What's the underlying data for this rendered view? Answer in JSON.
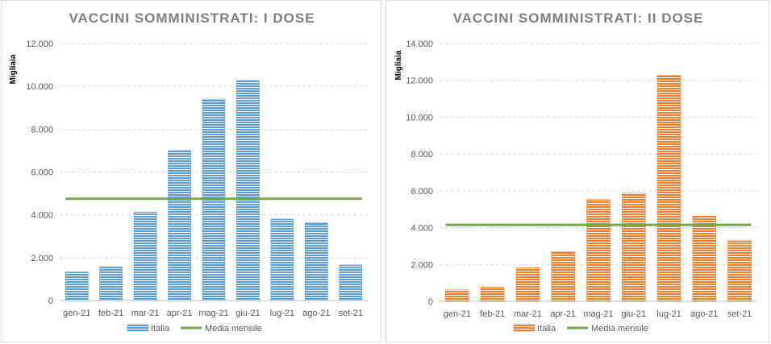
{
  "chart_data": [
    {
      "type": "bar",
      "title": "VACCINI SOMMINISTRATI: I DOSE",
      "ylabel": "Migliaia",
      "xlabel": "",
      "categories": [
        "gen-21",
        "feb-21",
        "mar-21",
        "apr-21",
        "mag-21",
        "giu-21",
        "lug-21",
        "ago-21",
        "set-21"
      ],
      "series": [
        {
          "name": "Italia",
          "type": "bar",
          "values": [
            1330,
            1570,
            4130,
            7000,
            9400,
            10270,
            3800,
            3620,
            1660
          ],
          "color": "#5b9bd5"
        },
        {
          "name": "Media mensile",
          "type": "line",
          "value": 4750,
          "color": "#70ad47"
        }
      ],
      "ylim": [
        0,
        12000
      ],
      "yticks": [
        "0",
        "2.000",
        "4.000",
        "6.000",
        "8.000",
        "10.000",
        "12.000"
      ],
      "ytick_values": [
        0,
        2000,
        4000,
        6000,
        8000,
        10000,
        12000
      ],
      "grid": true,
      "legend_position": "bottom"
    },
    {
      "type": "bar",
      "title": "VACCINI SOMMINISTRATI: II DOSE",
      "ylabel": "Migliaia",
      "xlabel": "",
      "categories": [
        "gen-21",
        "feb-21",
        "mar-21",
        "apr-21",
        "mag-21",
        "giu-21",
        "lug-21",
        "ago-21",
        "set-21"
      ],
      "series": [
        {
          "name": "Italia",
          "type": "bar",
          "values": [
            620,
            770,
            1820,
            2690,
            5520,
            5870,
            12280,
            4630,
            3290
          ],
          "color": "#ed7d31"
        },
        {
          "name": "Media mensile",
          "type": "line",
          "value": 4150,
          "color": "#70ad47"
        }
      ],
      "ylim": [
        0,
        14000
      ],
      "yticks": [
        "0",
        "2.000",
        "4.000",
        "6.000",
        "8.000",
        "10.000",
        "12.000",
        "14.000"
      ],
      "ytick_values": [
        0,
        2000,
        4000,
        6000,
        8000,
        10000,
        12000,
        14000
      ],
      "grid": true,
      "legend_position": "bottom"
    }
  ]
}
